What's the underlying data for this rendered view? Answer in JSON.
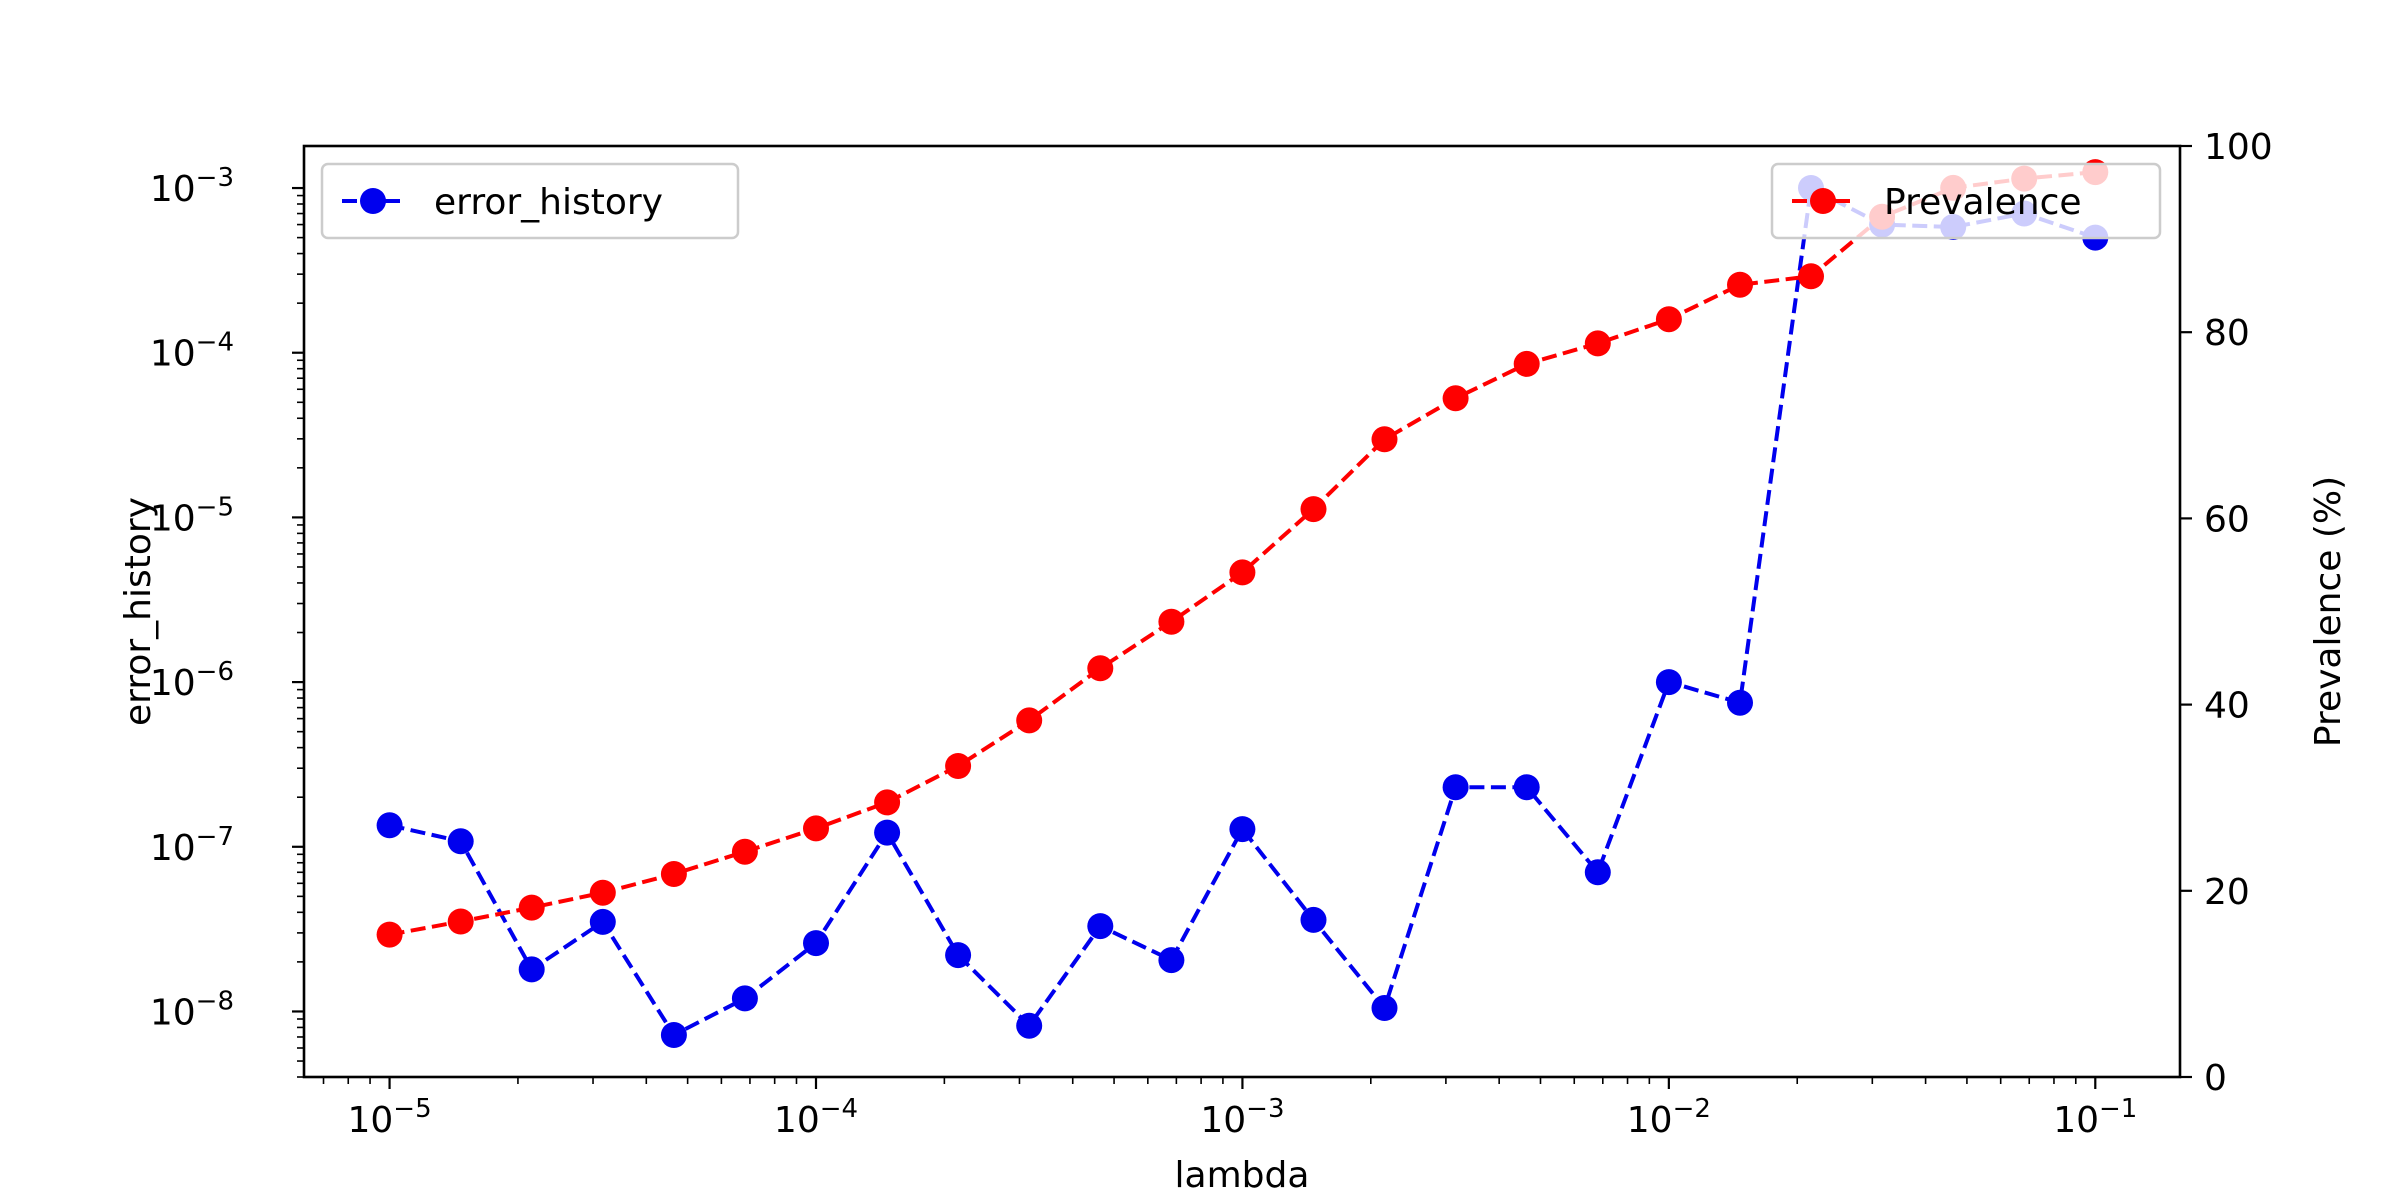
{
  "chart_data": {
    "type": "line",
    "xlabel": "lambda",
    "ylabel": "error_history",
    "y2label": "Prevalence (%)",
    "x_scale": "log",
    "y_scale": "log",
    "xlim": [
      6.3e-06,
      0.158
    ],
    "ylim": [
      4e-09,
      0.0018
    ],
    "y2lim": [
      0,
      100
    ],
    "x_ticks": [
      {
        "value": 1e-05,
        "base": "10",
        "exp": "−5"
      },
      {
        "value": 0.0001,
        "base": "10",
        "exp": "−4"
      },
      {
        "value": 0.001,
        "base": "10",
        "exp": "−3"
      },
      {
        "value": 0.01,
        "base": "10",
        "exp": "−2"
      },
      {
        "value": 0.1,
        "base": "10",
        "exp": "−1"
      }
    ],
    "y_ticks": [
      {
        "value": 1e-08,
        "base": "10",
        "exp": "−8"
      },
      {
        "value": 1e-07,
        "base": "10",
        "exp": "−7"
      },
      {
        "value": 1e-06,
        "base": "10",
        "exp": "−6"
      },
      {
        "value": 1e-05,
        "base": "10",
        "exp": "−5"
      },
      {
        "value": 0.0001,
        "base": "10",
        "exp": "−4"
      },
      {
        "value": 0.001,
        "base": "10",
        "exp": "−3"
      }
    ],
    "y2_ticks": [
      "0",
      "20",
      "40",
      "60",
      "80",
      "100"
    ],
    "x": [
      1e-05,
      1.468e-05,
      2.154e-05,
      3.162e-05,
      4.642e-05,
      6.813e-05,
      0.0001,
      0.0001468,
      0.0002154,
      0.0003162,
      0.0004642,
      0.0006813,
      0.001,
      0.001468,
      0.002154,
      0.003162,
      0.004642,
      0.006813,
      0.01,
      0.01468,
      0.02154,
      0.03162,
      0.04642,
      0.06813,
      0.1
    ],
    "series": [
      {
        "name": "error_history",
        "axis": "left",
        "color": "#0000ee",
        "style": "dashed",
        "marker": "circle",
        "values": [
          1.35e-07,
          1.08e-07,
          1.8e-08,
          3.5e-08,
          7.2e-09,
          1.2e-08,
          2.6e-08,
          1.22e-07,
          2.2e-08,
          8.2e-09,
          3.3e-08,
          2.05e-08,
          1.28e-07,
          3.6e-08,
          1.05e-08,
          2.3e-07,
          2.3e-07,
          7e-08,
          1e-06,
          7.5e-07,
          0.001,
          0.0006,
          0.00058,
          0.0007,
          0.0005
        ]
      },
      {
        "name": "Prevalence",
        "axis": "right",
        "color": "#ff0000",
        "style": "dashed",
        "marker": "circle",
        "values": [
          15.3,
          16.7,
          18.2,
          19.8,
          21.8,
          24.2,
          26.7,
          29.5,
          33.4,
          38.3,
          43.9,
          48.9,
          54.2,
          61.0,
          68.5,
          72.9,
          76.6,
          78.8,
          81.4,
          85.1,
          86.0,
          92.4,
          95.5,
          96.5,
          97.2
        ]
      }
    ],
    "legends": [
      {
        "label": "error_history",
        "placement": "upper left"
      },
      {
        "label": "Prevalence",
        "placement": "upper right"
      }
    ],
    "grid": false
  }
}
